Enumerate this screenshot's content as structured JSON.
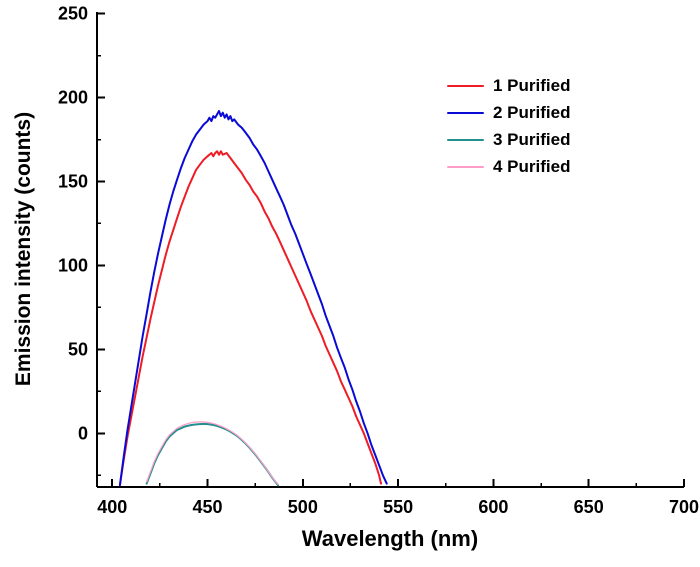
{
  "chart_data": {
    "type": "line",
    "title": "",
    "xlabel": "Wavelength (nm)",
    "ylabel": "Emission intensity (counts)",
    "xlim": [
      392,
      700
    ],
    "ylim": [
      -32,
      251
    ],
    "x_ticks": [
      400,
      450,
      500,
      550,
      600,
      650,
      700
    ],
    "x_minor_ticks": [
      425,
      475,
      525,
      575,
      625,
      675
    ],
    "y_ticks": [
      0,
      50,
      100,
      150,
      200,
      250
    ],
    "y_minor_ticks": [
      -25,
      25,
      75,
      125,
      175,
      225
    ],
    "grid": false,
    "legend_position": "upper-right-inside",
    "axis_color": "#000000",
    "series": [
      {
        "name": "1 Purified",
        "color": "#ee1c25",
        "width": 2,
        "points": [
          [
            404,
            -31
          ],
          [
            406,
            -16
          ],
          [
            408,
            -2
          ],
          [
            410,
            10
          ],
          [
            412,
            22
          ],
          [
            414,
            34
          ],
          [
            416,
            46
          ],
          [
            418,
            57
          ],
          [
            420,
            68
          ],
          [
            422,
            78
          ],
          [
            424,
            88
          ],
          [
            426,
            97
          ],
          [
            428,
            106
          ],
          [
            430,
            114
          ],
          [
            432,
            121
          ],
          [
            434,
            128
          ],
          [
            436,
            135
          ],
          [
            438,
            141
          ],
          [
            440,
            147
          ],
          [
            442,
            152
          ],
          [
            444,
            157
          ],
          [
            446,
            160
          ],
          [
            448,
            163
          ],
          [
            450,
            165
          ],
          [
            452,
            167
          ],
          [
            453,
            165
          ],
          [
            454,
            167
          ],
          [
            455,
            168
          ],
          [
            456,
            166
          ],
          [
            457,
            168
          ],
          [
            458,
            166
          ],
          [
            460,
            167
          ],
          [
            462,
            164
          ],
          [
            464,
            161
          ],
          [
            466,
            158
          ],
          [
            468,
            155
          ],
          [
            470,
            151
          ],
          [
            472,
            148
          ],
          [
            474,
            144
          ],
          [
            476,
            141
          ],
          [
            478,
            137
          ],
          [
            480,
            132
          ],
          [
            482,
            128
          ],
          [
            484,
            123
          ],
          [
            486,
            119
          ],
          [
            488,
            114
          ],
          [
            490,
            109
          ],
          [
            492,
            104
          ],
          [
            494,
            99
          ],
          [
            496,
            94
          ],
          [
            498,
            89
          ],
          [
            500,
            84
          ],
          [
            502,
            79
          ],
          [
            504,
            73
          ],
          [
            506,
            68
          ],
          [
            508,
            63
          ],
          [
            510,
            58
          ],
          [
            512,
            52
          ],
          [
            514,
            47
          ],
          [
            516,
            42
          ],
          [
            518,
            37
          ],
          [
            520,
            31
          ],
          [
            522,
            26
          ],
          [
            524,
            21
          ],
          [
            526,
            16
          ],
          [
            528,
            10
          ],
          [
            530,
            5
          ],
          [
            532,
            0
          ],
          [
            534,
            -6
          ],
          [
            536,
            -12
          ],
          [
            538,
            -18
          ],
          [
            540,
            -25
          ],
          [
            541,
            -30
          ]
        ]
      },
      {
        "name": "2 Purified",
        "color": "#0a0ad6",
        "width": 2,
        "points": [
          [
            404,
            -31
          ],
          [
            406,
            -14
          ],
          [
            408,
            2
          ],
          [
            410,
            16
          ],
          [
            412,
            30
          ],
          [
            414,
            44
          ],
          [
            416,
            58
          ],
          [
            418,
            71
          ],
          [
            420,
            84
          ],
          [
            422,
            96
          ],
          [
            424,
            107
          ],
          [
            426,
            117
          ],
          [
            428,
            127
          ],
          [
            430,
            136
          ],
          [
            432,
            144
          ],
          [
            434,
            151
          ],
          [
            436,
            158
          ],
          [
            438,
            164
          ],
          [
            440,
            169
          ],
          [
            442,
            174
          ],
          [
            444,
            178
          ],
          [
            446,
            181
          ],
          [
            448,
            184
          ],
          [
            450,
            186
          ],
          [
            451,
            188
          ],
          [
            452,
            186
          ],
          [
            453,
            189
          ],
          [
            454,
            188
          ],
          [
            455,
            190
          ],
          [
            456,
            192
          ],
          [
            457,
            189
          ],
          [
            458,
            191
          ],
          [
            459,
            188
          ],
          [
            460,
            190
          ],
          [
            461,
            187
          ],
          [
            462,
            189
          ],
          [
            463,
            186
          ],
          [
            464,
            187
          ],
          [
            466,
            184
          ],
          [
            468,
            182
          ],
          [
            470,
            179
          ],
          [
            472,
            176
          ],
          [
            474,
            172
          ],
          [
            476,
            169
          ],
          [
            478,
            165
          ],
          [
            480,
            161
          ],
          [
            482,
            156
          ],
          [
            484,
            151
          ],
          [
            486,
            146
          ],
          [
            488,
            141
          ],
          [
            490,
            136
          ],
          [
            492,
            130
          ],
          [
            494,
            124
          ],
          [
            496,
            119
          ],
          [
            498,
            113
          ],
          [
            500,
            107
          ],
          [
            502,
            101
          ],
          [
            504,
            95
          ],
          [
            506,
            89
          ],
          [
            508,
            83
          ],
          [
            510,
            77
          ],
          [
            512,
            70
          ],
          [
            514,
            64
          ],
          [
            516,
            58
          ],
          [
            518,
            51
          ],
          [
            520,
            45
          ],
          [
            522,
            39
          ],
          [
            524,
            32
          ],
          [
            526,
            26
          ],
          [
            528,
            19
          ],
          [
            530,
            13
          ],
          [
            532,
            6
          ],
          [
            534,
            0
          ],
          [
            536,
            -7
          ],
          [
            538,
            -13
          ],
          [
            540,
            -19
          ],
          [
            542,
            -25
          ],
          [
            544,
            -30
          ]
        ]
      },
      {
        "name": "3 Purified",
        "color": "#248f8f",
        "width": 2,
        "points": [
          [
            418,
            -30
          ],
          [
            420,
            -24
          ],
          [
            422,
            -18
          ],
          [
            424,
            -13
          ],
          [
            426,
            -9
          ],
          [
            428,
            -5
          ],
          [
            430,
            -2
          ],
          [
            432,
            0
          ],
          [
            434,
            2
          ],
          [
            436,
            3
          ],
          [
            438,
            4
          ],
          [
            440,
            4.6
          ],
          [
            442,
            5
          ],
          [
            444,
            5.3
          ],
          [
            446,
            5.5
          ],
          [
            448,
            5.6
          ],
          [
            450,
            5.5
          ],
          [
            452,
            5.2
          ],
          [
            454,
            4.7
          ],
          [
            456,
            4
          ],
          [
            458,
            3.2
          ],
          [
            460,
            2.2
          ],
          [
            462,
            1
          ],
          [
            464,
            -0.4
          ],
          [
            466,
            -2
          ],
          [
            468,
            -4
          ],
          [
            470,
            -6.2
          ],
          [
            472,
            -8.6
          ],
          [
            474,
            -11.2
          ],
          [
            476,
            -14
          ],
          [
            478,
            -17
          ],
          [
            480,
            -20
          ],
          [
            482,
            -23.2
          ],
          [
            484,
            -26.5
          ],
          [
            486,
            -29.5
          ],
          [
            487,
            -31
          ]
        ]
      },
      {
        "name": "4 Purified",
        "color": "#ff9dc8",
        "width": 1.2,
        "points": [
          [
            418,
            -29
          ],
          [
            420,
            -23
          ],
          [
            422,
            -17
          ],
          [
            424,
            -12
          ],
          [
            426,
            -8
          ],
          [
            428,
            -4
          ],
          [
            430,
            -1
          ],
          [
            432,
            1
          ],
          [
            434,
            3
          ],
          [
            436,
            4.2
          ],
          [
            438,
            5.2
          ],
          [
            440,
            5.9
          ],
          [
            442,
            6.4
          ],
          [
            444,
            6.7
          ],
          [
            446,
            6.8
          ],
          [
            448,
            6.7
          ],
          [
            450,
            6.5
          ],
          [
            452,
            6.1
          ],
          [
            454,
            5.5
          ],
          [
            456,
            4.7
          ],
          [
            458,
            3.8
          ],
          [
            460,
            2.7
          ],
          [
            462,
            1.4
          ],
          [
            464,
            0
          ],
          [
            466,
            -1.7
          ],
          [
            468,
            -3.7
          ],
          [
            470,
            -5.9
          ],
          [
            472,
            -8.3
          ],
          [
            474,
            -10.9
          ],
          [
            476,
            -13.7
          ],
          [
            478,
            -16.7
          ],
          [
            480,
            -19.8
          ],
          [
            482,
            -23
          ],
          [
            484,
            -26.3
          ],
          [
            486,
            -29.3
          ],
          [
            487,
            -30.5
          ]
        ]
      }
    ]
  }
}
